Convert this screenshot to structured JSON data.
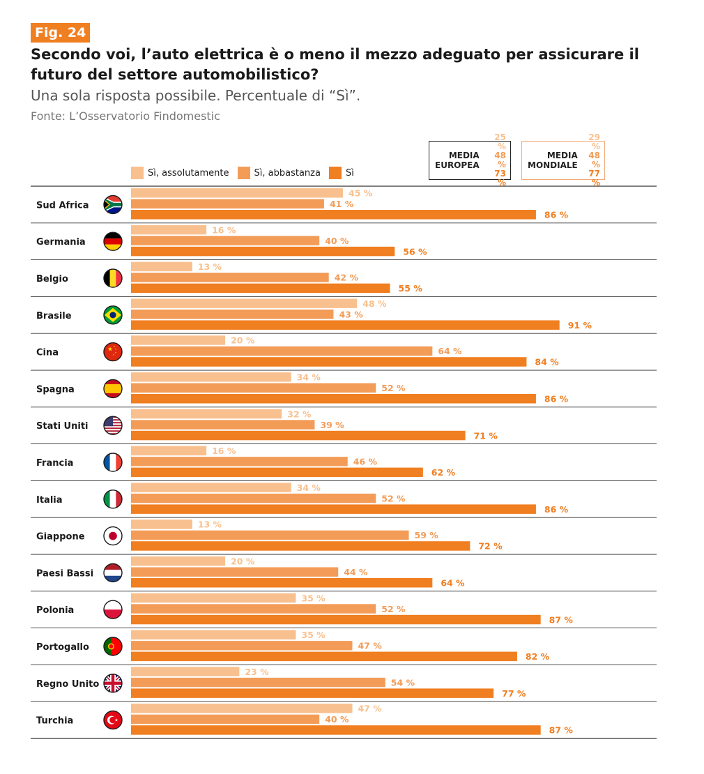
{
  "figure": {
    "tag": "Fig. 24",
    "title": "Secondo voi, l’auto elettrica è o meno il mezzo adeguato per assicurare il futuro del settore automobilistico?",
    "subtitle": "Una sola risposta possibile. Percentuale di “Sì”.",
    "source": "Fonte: L’Osservatorio Findomestic"
  },
  "averages": {
    "europe": {
      "label_line1": "MEDIA",
      "label_line2": "EUROPEA",
      "values": [
        "25 %",
        "48 %",
        "73 %"
      ]
    },
    "world": {
      "label_line1": "MEDIA",
      "label_line2": "MONDIALE",
      "values": [
        "29 %",
        "48 %",
        "77 %"
      ]
    }
  },
  "colors": {
    "light": "#f9c08f",
    "medium": "#f39c58",
    "dark": "#f07f22",
    "rule": "#333333"
  },
  "chart_data": {
    "type": "bar",
    "orientation": "horizontal",
    "categories": [
      "Sud Africa",
      "Germania",
      "Belgio",
      "Brasile",
      "Cina",
      "Spagna",
      "Stati Uniti",
      "Francia",
      "Italia",
      "Giappone",
      "Paesi Bassi",
      "Polonia",
      "Portogallo",
      "Regno Unito",
      "Turchia"
    ],
    "flags": [
      "south-africa-flag-icon",
      "germany-flag-icon",
      "belgium-flag-icon",
      "brazil-flag-icon",
      "china-flag-icon",
      "spain-flag-icon",
      "usa-flag-icon",
      "france-flag-icon",
      "italy-flag-icon",
      "japan-flag-icon",
      "netherlands-flag-icon",
      "poland-flag-icon",
      "portugal-flag-icon",
      "uk-flag-icon",
      "turkey-flag-icon"
    ],
    "series": [
      {
        "name": "Sì, assolutamente",
        "values": [
          45,
          16,
          13,
          48,
          20,
          34,
          32,
          16,
          34,
          13,
          20,
          35,
          35,
          23,
          47
        ]
      },
      {
        "name": "Sì, abbastanza",
        "values": [
          41,
          40,
          42,
          43,
          64,
          52,
          39,
          46,
          52,
          59,
          44,
          52,
          47,
          54,
          40
        ]
      },
      {
        "name": "Sì",
        "values": [
          86,
          56,
          55,
          91,
          84,
          86,
          71,
          62,
          86,
          72,
          64,
          87,
          82,
          77,
          87
        ]
      }
    ],
    "value_suffix": " %",
    "xlim": [
      0,
      100
    ]
  }
}
